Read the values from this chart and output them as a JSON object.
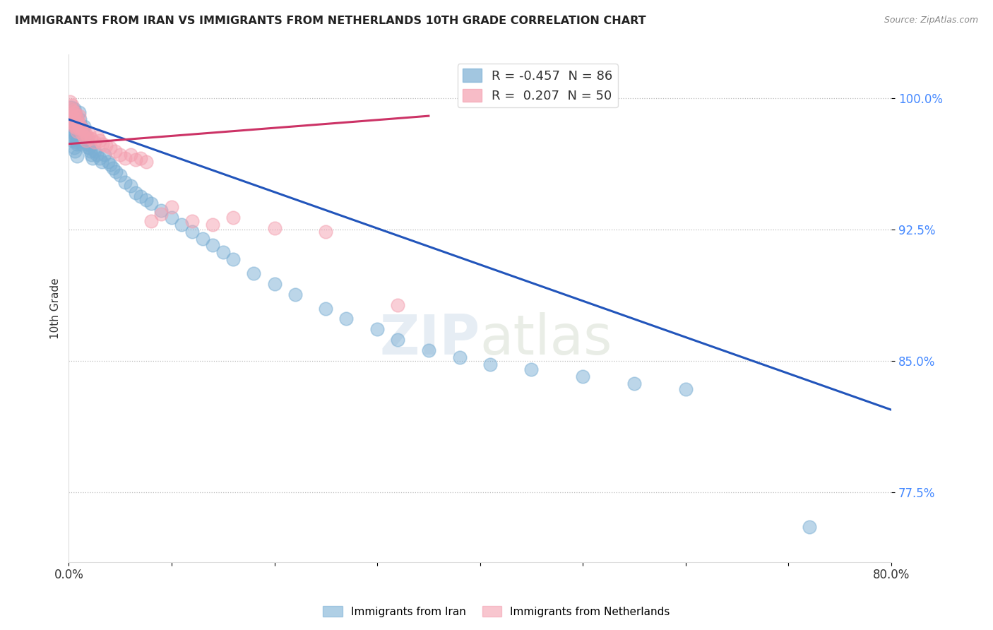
{
  "title": "IMMIGRANTS FROM IRAN VS IMMIGRANTS FROM NETHERLANDS 10TH GRADE CORRELATION CHART",
  "source": "Source: ZipAtlas.com",
  "ylabel": "10th Grade",
  "xlim": [
    0.0,
    0.8
  ],
  "ylim": [
    0.735,
    1.025
  ],
  "yticks": [
    0.775,
    0.85,
    0.925,
    1.0
  ],
  "ytick_labels": [
    "77.5%",
    "85.0%",
    "92.5%",
    "100.0%"
  ],
  "xticks": [
    0.0,
    0.1,
    0.2,
    0.3,
    0.4,
    0.5,
    0.6,
    0.7,
    0.8
  ],
  "xtick_labels": [
    "0.0%",
    "",
    "",
    "",
    "",
    "",
    "",
    "",
    "80.0%"
  ],
  "iran_R": -0.457,
  "iran_N": 86,
  "neth_R": 0.207,
  "neth_N": 50,
  "iran_color": "#7BAFD4",
  "neth_color": "#F4A0B0",
  "iran_line_color": "#2255BB",
  "neth_line_color": "#CC3366",
  "background_color": "#FFFFFF",
  "iran_line_x": [
    0.0,
    0.8
  ],
  "iran_line_y": [
    0.988,
    0.822
  ],
  "neth_line_x": [
    0.0,
    0.35
  ],
  "neth_line_y": [
    0.974,
    0.99
  ],
  "iran_scatter_x": [
    0.001,
    0.002,
    0.002,
    0.003,
    0.003,
    0.003,
    0.003,
    0.004,
    0.004,
    0.004,
    0.005,
    0.005,
    0.005,
    0.005,
    0.006,
    0.006,
    0.006,
    0.006,
    0.007,
    0.007,
    0.007,
    0.008,
    0.008,
    0.008,
    0.008,
    0.009,
    0.009,
    0.01,
    0.01,
    0.01,
    0.011,
    0.011,
    0.012,
    0.012,
    0.013,
    0.013,
    0.014,
    0.015,
    0.015,
    0.016,
    0.017,
    0.018,
    0.019,
    0.02,
    0.021,
    0.022,
    0.023,
    0.025,
    0.027,
    0.03,
    0.032,
    0.035,
    0.038,
    0.04,
    0.043,
    0.046,
    0.05,
    0.055,
    0.06,
    0.065,
    0.07,
    0.075,
    0.08,
    0.09,
    0.1,
    0.11,
    0.12,
    0.13,
    0.14,
    0.15,
    0.16,
    0.18,
    0.2,
    0.22,
    0.25,
    0.27,
    0.3,
    0.32,
    0.35,
    0.38,
    0.41,
    0.45,
    0.5,
    0.55,
    0.6,
    0.72
  ],
  "iran_scatter_y": [
    0.995,
    0.99,
    0.985,
    0.995,
    0.988,
    0.982,
    0.976,
    0.992,
    0.985,
    0.978,
    0.994,
    0.987,
    0.98,
    0.972,
    0.992,
    0.985,
    0.978,
    0.97,
    0.99,
    0.983,
    0.975,
    0.988,
    0.981,
    0.974,
    0.967,
    0.986,
    0.978,
    0.992,
    0.984,
    0.976,
    0.988,
    0.98,
    0.984,
    0.976,
    0.982,
    0.974,
    0.98,
    0.984,
    0.975,
    0.978,
    0.976,
    0.974,
    0.972,
    0.972,
    0.97,
    0.968,
    0.966,
    0.97,
    0.968,
    0.966,
    0.964,
    0.968,
    0.964,
    0.962,
    0.96,
    0.958,
    0.956,
    0.952,
    0.95,
    0.946,
    0.944,
    0.942,
    0.94,
    0.936,
    0.932,
    0.928,
    0.924,
    0.92,
    0.916,
    0.912,
    0.908,
    0.9,
    0.894,
    0.888,
    0.88,
    0.874,
    0.868,
    0.862,
    0.856,
    0.852,
    0.848,
    0.845,
    0.841,
    0.837,
    0.834,
    0.755
  ],
  "neth_scatter_x": [
    0.001,
    0.002,
    0.002,
    0.003,
    0.003,
    0.004,
    0.004,
    0.005,
    0.005,
    0.006,
    0.006,
    0.007,
    0.007,
    0.008,
    0.008,
    0.009,
    0.01,
    0.01,
    0.011,
    0.012,
    0.013,
    0.014,
    0.015,
    0.016,
    0.017,
    0.018,
    0.02,
    0.022,
    0.025,
    0.028,
    0.03,
    0.033,
    0.036,
    0.04,
    0.045,
    0.05,
    0.055,
    0.06,
    0.065,
    0.07,
    0.075,
    0.08,
    0.09,
    0.1,
    0.12,
    0.14,
    0.16,
    0.2,
    0.25,
    0.32
  ],
  "neth_scatter_y": [
    0.998,
    0.994,
    0.988,
    0.996,
    0.99,
    0.993,
    0.986,
    0.991,
    0.984,
    0.992,
    0.985,
    0.99,
    0.983,
    0.988,
    0.981,
    0.986,
    0.99,
    0.983,
    0.985,
    0.983,
    0.98,
    0.982,
    0.978,
    0.98,
    0.976,
    0.978,
    0.98,
    0.977,
    0.975,
    0.978,
    0.976,
    0.974,
    0.973,
    0.972,
    0.97,
    0.968,
    0.966,
    0.968,
    0.965,
    0.966,
    0.964,
    0.93,
    0.934,
    0.938,
    0.93,
    0.928,
    0.932,
    0.926,
    0.924,
    0.882
  ]
}
